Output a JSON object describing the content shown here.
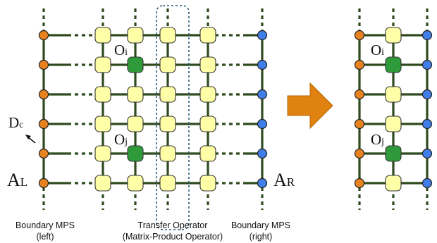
{
  "labels": {
    "o_i": {
      "main": "O",
      "sub": "i"
    },
    "o_j": {
      "main": "O",
      "sub": "j"
    },
    "o_i_right": {
      "main": "O",
      "sub": "i"
    },
    "o_j_right": {
      "main": "O",
      "sub": "j"
    },
    "d_c": {
      "main": "D",
      "sub": "c"
    },
    "a_l": {
      "main": "A",
      "sub": "L"
    },
    "a_r": {
      "main": "A",
      "sub": "R"
    }
  },
  "captions": {
    "boundary_left": {
      "line1": "Boundary MPS",
      "line2": "(left)"
    },
    "transfer": {
      "line1": "Transfer Operator",
      "line2": "(Matrix-Product Operator)"
    },
    "boundary_right": {
      "line1": "Boundary MPS",
      "line2": "(right)"
    }
  },
  "colors": {
    "left_boundary": "#e8821f",
    "right_boundary": "#3f7ee8",
    "tensor": "#ffffa8",
    "operator": "#2f9a3a",
    "line": "#2f4a1e",
    "arrow": "#e0820f",
    "highlight": "#2a5a78"
  },
  "grid": {
    "rows": 6,
    "mpo_columns": 4,
    "operator_rows": [
      1,
      4
    ]
  }
}
